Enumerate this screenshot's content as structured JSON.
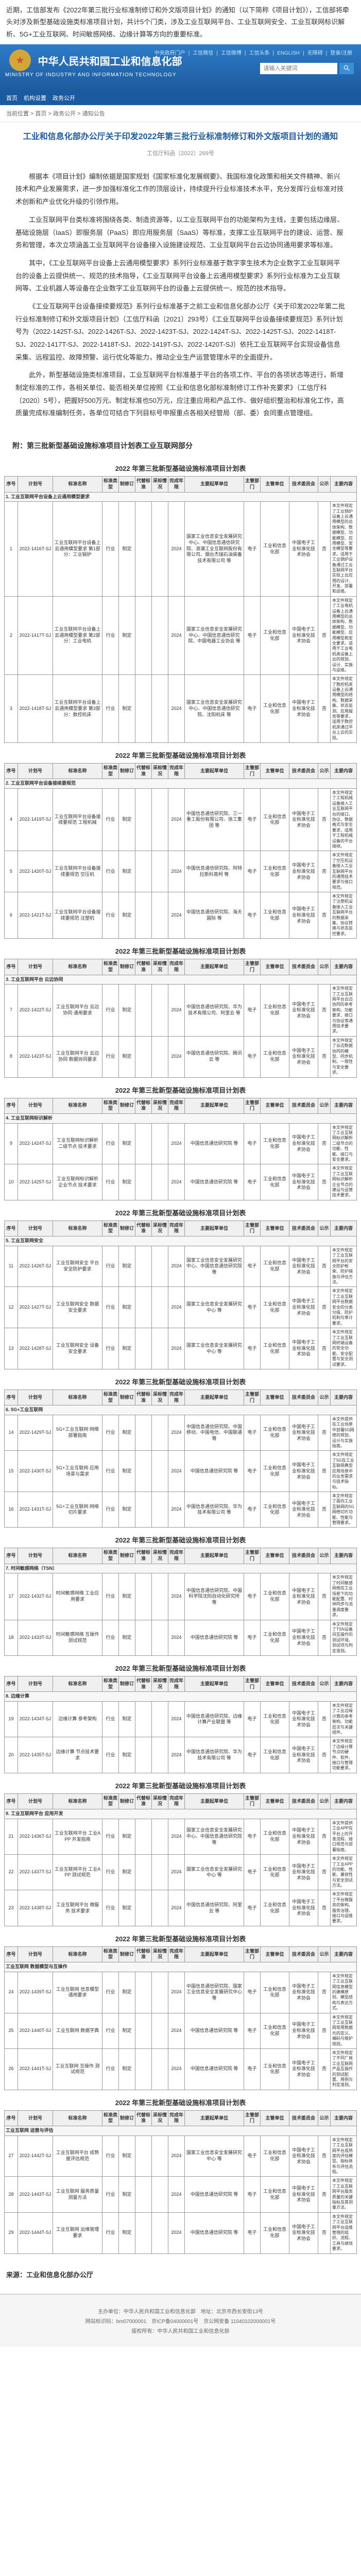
{
  "intro": "近期，工信部发布《2022年第三批行业标准制修订和外文版项目计划》的通知（以下简称《项目计划》），工信部将牵头对涉及新型基础设施类标准项目计划，共计5个门类，涉及工业互联网平台、工业互联网安全、工业互联网标识解析、5G+工业互联网、时间敏感网络、边缘计算等方向的重要标准。",
  "gov_title": "中华人民共和国工业和信息化部",
  "gov_subtitle": "MINISTRY OF INDUSTRY AND INFORMATION TECHNOLOGY",
  "top_links": [
    "中央政府门户",
    "工信微信",
    "工信微博",
    "工信头条",
    "ENGLISH",
    "无障碍",
    "登录/注册"
  ],
  "search_placeholder": "请输入关键词",
  "nav": [
    "首页",
    "机构设置",
    "政务公开"
  ],
  "breadcrumb": "当前位置 > 首页 > 政务公开 > 通知公告",
  "notice_title": "工业和信息化部办公厅关于印发2022年第三批行业标准制修订和外文版项目计划的通知",
  "notice_meta": "工信厅科函〔2022〕269号",
  "paragraphs": [
    "根据本《项目计划》编制依据是国家规划《国家标准化发展纲要》、我国标准化政策和相关文件精神、新兴技术和产业发展需求，进一步加强标准化工作的顶层设计，持续提升行业标准技术水平，充分发挥行业标准对技术创新和产业优化升级的引领作用。",
    "工业互联网平台类标准将围绕各类、制造资源等，以工业互联网平台的功能架构为主线，主要包括边缘层、基础设施层（IaaS）即服务层（PaaS）即应用服务层（SaaS）等标准，支撑工业互联网平台的建设、运营、服务和管理，本次立项涵盖工业互联网平台设备接入设施建设规范、工业互联网平台云边协同通用要求等标准。",
    "其中，《工业互联网平台设备上云通用模型要求》系列行业标准基于数字孪生技术为企业数字工业互联网平台的设备上云提供统一、规范的技术指导，《工业互联网平台设备上云通用模型要求》系列行业标准为工业互联网等、工业机器人等设备在企业数字工业互联网平台的设备上云提供统一、规范的技术指导。",
    "《工业互联网平台设备接续要规范》系列行业标准基于之前工业和信息化部办公厅《关于印发2022年第二批行业标准制修订和外文版项目计划》（工信厅科函〔2021〕293号）《工业互联网平台设备接续要规范》系列计划号为（2022-1425T-SJ、2022-1426T-SJ、2022-1423T-SJ、2022-1424T-SJ、2022-1425T-SJ、2022-1418T-SJ、2022-1417T-SJ、2022-1418T-SJ、2022-1419T-SJ、2022-1420T-SJ）依托工业互联网平台实现设备信息采集、远程监控、故障预警、运行优化等能力，推动企业生产运营管理水平的全面提升。",
    "此外，新型基础设施类标准项目，工业互联网平台标准基于平台的各项工作、平台的各项状态等进行，新增制定标准的工作，各相关单位、能否相关单位按照《工业和信息化部标准制修订工作补充要求》（工信厅科〔2020〕5号），把握好500万元、制定标准也50万元，应注重应用和产品工作、做好组织整治和标准化工作，高质量完成标准编制任务，各单位可结合下列目标号申报重点各相关经管局（部、委）会同重点管理组。"
  ],
  "attach_label": "附：第三批新型基础设施标准项目计划表工业互联网部分",
  "table_headers": [
    "序号",
    "计划号",
    "标准名称",
    "标准类型",
    "制修订",
    "代替标准",
    "采标情况",
    "完成年限",
    "主要起草单位",
    "主管部门",
    "主管单位",
    "技术委员会",
    "公示"
  ],
  "tables": [
    {
      "caption": "2022 年第三批新型基础设施标准项目计划表",
      "section": "1. 工业互联网平台设备上云通用模型要求",
      "rows": [
        {
          "no": "1",
          "plan": "2022-1416T-SJ",
          "name": "工业互联网平台设备上云通用模型要求 第1部分：工业锅炉",
          "type": "行业",
          "rev": "制定",
          "repl": "",
          "adopt": "",
          "year": "2024",
          "units": "国家工业信息安全发展研究中心、中国信息通信研究院、浪潮工业互联网股份有限公司、烟台杰瑞石油装备技术有限公司 等",
          "supe": "电子",
          "dept": "工业和信息化部",
          "tc": "中国电子工业标准化技术协会",
          "pub": "否",
          "content": "本文件规定了工业锅炉设备上云通用模型的总体架构、数据模型、功能模型、应用模型、安全模型等要求。适用于工业锅炉设备通过工业互联网平台实现上云应用的设计、开发、部署和运维。"
        },
        {
          "no": "2",
          "plan": "2022-1417T-SJ",
          "name": "工业互联网平台设备上云通用模型要求 第2部分：工业电机",
          "type": "行业",
          "rev": "制定",
          "repl": "",
          "adopt": "",
          "year": "2024",
          "units": "国家工业信息安全发展研究中心、中国信息通信研究院、中国电器工业协会 等",
          "supe": "电子",
          "dept": "工业和信息化部",
          "tc": "中国电子工业标准化技术协会",
          "pub": "否",
          "content": "本文件规定了工业电机设备上云通用模型的总体架构、数据模型、功能模型、应用模型和安全要求。适用于工业电机类设备上云的规划、设计、实施与运维。"
        },
        {
          "no": "3",
          "plan": "2022-1418T-SJ",
          "name": "工业互联网平台设备上云通用模型要求 第3部分：数控机床",
          "type": "行业",
          "rev": "制定",
          "repl": "",
          "adopt": "",
          "year": "2024",
          "units": "国家工业信息安全发展研究中心、中国信息通信研究院、沈阳机床 等",
          "supe": "电子",
          "dept": "工业和信息化部",
          "tc": "中国电子工业标准化技术协会",
          "pub": "否",
          "content": "本文件规定了数控机床设备上云通用模型的结构、数据采集、状态监测、应用服务等要求，适用于数控机床通过平台上云的实现。"
        }
      ]
    },
    {
      "caption": "2022 年第三批新型基础设施标准项目计划表",
      "section": "2. 工业互联网平台设备接续要规范",
      "rows": [
        {
          "no": "4",
          "plan": "2022-1419T-SJ",
          "name": "工业互联网平台设备接续要规范 工程机械",
          "type": "行业",
          "rev": "制定",
          "repl": "",
          "adopt": "",
          "year": "2024",
          "units": "中国信息通信研究院、三一重工股份有限公司、徐工集团 等",
          "supe": "电子",
          "dept": "工业和信息化部",
          "tc": "中国电子工业标准化技术协会",
          "pub": "否",
          "content": "本文件规定了工程机械设备接入工业互联网平台的接口、协议、数据格式与安全要求，适用于工程机械设备的平台接续。"
        },
        {
          "no": "5",
          "plan": "2022-1420T-SJ",
          "name": "工业互联网平台设备接续要规范 空压机",
          "type": "行业",
          "rev": "制定",
          "repl": "",
          "adopt": "",
          "year": "2024",
          "units": "中国信息通信研究院、阿特拉斯科普柯 等",
          "supe": "电子",
          "dept": "工业和信息化部",
          "tc": "中国电子工业标准化技术协会",
          "pub": "否",
          "content": "本文件规定了空压机设备接入工业互联网平台的通用技术要求与接口规范。"
        },
        {
          "no": "6",
          "plan": "2022-1421T-SJ",
          "name": "工业互联网平台设备接续要规范 注塑机",
          "type": "行业",
          "rev": "制定",
          "repl": "",
          "adopt": "",
          "year": "2024",
          "units": "中国信息通信研究院、海天国际 等",
          "supe": "电子",
          "dept": "工业和信息化部",
          "tc": "中国电子工业标准化技术协会",
          "pub": "否",
          "content": "本文件规定了注塑机设备接入工业互联网平台的数据采集、协议转换与状态监控要求。"
        }
      ]
    },
    {
      "caption": "2022 年第三批新型基础设施标准项目计划表",
      "section": "3. 工业互联网平台 云边协同",
      "rows": [
        {
          "no": "7",
          "plan": "2022-1422T-SJ",
          "name": "工业互联网平台 云边协同 通用要求",
          "type": "行业",
          "rev": "制定",
          "repl": "",
          "adopt": "",
          "year": "2024",
          "units": "中国信息通信研究院、华为技术有限公司、阿里云 等",
          "supe": "电子",
          "dept": "工业和信息化部",
          "tc": "中国电子工业标准化技术协会",
          "pub": "否",
          "content": "本文件规定了工业互联网平台云边协同的参考架构、功能要求、接口与协议等通用技术要求。"
        },
        {
          "no": "8",
          "plan": "2022-1423T-SJ",
          "name": "工业互联网平台 云边协同 数据协同要求",
          "type": "行业",
          "rev": "制定",
          "repl": "",
          "adopt": "",
          "year": "2024",
          "units": "中国信息通信研究院、腾讯云 等",
          "supe": "电子",
          "dept": "工业和信息化部",
          "tc": "中国电子工业标准化技术协会",
          "pub": "否",
          "content": "本文件规定了云边数据协同的模型、同步机制、一致性与安全要求。"
        }
      ]
    },
    {
      "caption": "2022 年第三批新型基础设施标准项目计划表",
      "section": "4. 工业互联网标识解析",
      "rows": [
        {
          "no": "9",
          "plan": "2022-1424T-SJ",
          "name": "工业互联网标识解析 二级节点 技术要求",
          "type": "行业",
          "rev": "制定",
          "repl": "",
          "adopt": "",
          "year": "2024",
          "units": "中国信息通信研究院 等",
          "supe": "电子",
          "dept": "工业和信息化部",
          "tc": "中国电子工业标准化技术协会",
          "pub": "否",
          "content": "本文件规定了工业互联网标识解析二级节点的功能、性能、接口与安全要求。"
        },
        {
          "no": "10",
          "plan": "2022-1425T-SJ",
          "name": "工业互联网标识解析 企业节点 技术要求",
          "type": "行业",
          "rev": "制定",
          "repl": "",
          "adopt": "",
          "year": "2024",
          "units": "中国信息通信研究院 等",
          "supe": "电子",
          "dept": "工业和信息化部",
          "tc": "中国电子工业标准化技术协会",
          "pub": "否",
          "content": "本文件规定了工业互联网标识解析企业节点的建设与运营技术要求。"
        }
      ]
    },
    {
      "caption": "2022 年第三批新型基础设施标准项目计划表",
      "section": "5. 工业互联网安全",
      "rows": [
        {
          "no": "11",
          "plan": "2022-1426T-SJ",
          "name": "工业互联网安全 平台安全防护要求",
          "type": "行业",
          "rev": "制定",
          "repl": "",
          "adopt": "",
          "year": "2024",
          "units": "国家工业信息安全发展研究中心、中国信息通信研究院 等",
          "supe": "电子",
          "dept": "工业和信息化部",
          "tc": "中国电子工业标准化技术协会",
          "pub": "否",
          "content": "本文件规定了工业互联网平台的安全防护框架、防护措施与评估方法。"
        },
        {
          "no": "12",
          "plan": "2022-1427T-SJ",
          "name": "工业互联网安全 数据安全要求",
          "type": "行业",
          "rev": "制定",
          "repl": "",
          "adopt": "",
          "year": "2024",
          "units": "国家工业信息安全发展研究中心 等",
          "supe": "电子",
          "dept": "工业和信息化部",
          "tc": "中国电子工业标准化技术协会",
          "pub": "否",
          "content": "本文件规定了工业互联网平台数据安全的分类分级、防护机制与审计要求。"
        },
        {
          "no": "13",
          "plan": "2022-1428T-SJ",
          "name": "工业互联网安全 设备安全要求",
          "type": "行业",
          "rev": "制定",
          "repl": "",
          "adopt": "",
          "year": "2024",
          "units": "国家工业信息安全发展研究中心 等",
          "supe": "电子",
          "dept": "工业和信息化部",
          "tc": "中国电子工业标准化技术协会",
          "pub": "否",
          "content": "本文件规定了工业互联网终端设备的安全功能、安全配置与安全测试要求。"
        }
      ]
    },
    {
      "caption": "2022 年第三批新型基础设施标准项目计划表",
      "section": "6. 5G+工业互联网",
      "rows": [
        {
          "no": "14",
          "plan": "2022-1429T-SJ",
          "name": "5G+工业互联网 网络部署指南",
          "type": "行业",
          "rev": "制定",
          "repl": "",
          "adopt": "",
          "year": "2024",
          "units": "中国信息通信研究院、中国移动、中国电信、中国联通 等",
          "supe": "电子",
          "dept": "工业和信息化部",
          "tc": "中国电子工业标准化技术协会",
          "pub": "否",
          "content": "本文件提供在工业场景中部署5G网络的规划、设计与实施指南。"
        },
        {
          "no": "15",
          "plan": "2022-1430T-SJ",
          "name": "5G+工业互联网 应用场景与需求",
          "type": "行业",
          "rev": "制定",
          "repl": "",
          "adopt": "",
          "year": "2024",
          "units": "中国信息通信研究院 等",
          "supe": "电子",
          "dept": "工业和信息化部",
          "tc": "中国电子工业标准化技术协会",
          "pub": "否",
          "content": "本文件规定了5G在工业互联网典型应用场景中的业务需求与技术指标。"
        },
        {
          "no": "16",
          "plan": "2022-1431T-SJ",
          "name": "5G+工业互联网 网络切片要求",
          "type": "行业",
          "rev": "制定",
          "repl": "",
          "adopt": "",
          "year": "2024",
          "units": "中国信息通信研究院、华为技术有限公司 等",
          "supe": "电子",
          "dept": "工业和信息化部",
          "tc": "中国电子工业标准化技术协会",
          "pub": "否",
          "content": "本文件规定了面向工业互联网的5G网络切片功能、性能与管理要求。"
        }
      ]
    },
    {
      "caption": "2022 年第三批新型基础设施标准项目计划表",
      "section": "7. 时间敏感网络（TSN）",
      "rows": [
        {
          "no": "17",
          "plan": "2022-1432T-SJ",
          "name": "时间敏感网络 工业应用要求",
          "type": "行业",
          "rev": "制定",
          "repl": "",
          "adopt": "",
          "year": "2024",
          "units": "中国信息通信研究院、中国科学院沈阳自动化研究所 等",
          "supe": "电子",
          "dept": "工业和信息化部",
          "tc": "中国电子工业标准化技术协会",
          "pub": "否",
          "content": "本文件规定了时间敏感网络在工业场景下的功能配置、时钟同步与流量调度要求。"
        },
        {
          "no": "18",
          "plan": "2022-1433T-SJ",
          "name": "时间敏感网络 互操作测试规范",
          "type": "行业",
          "rev": "制定",
          "repl": "",
          "adopt": "",
          "year": "2024",
          "units": "中国信息通信研究院 等",
          "supe": "电子",
          "dept": "工业和信息化部",
          "tc": "中国电子工业标准化技术协会",
          "pub": "否",
          "content": "本文件规定了TSN设备间互操作的测试环境、测试项与判定准则。"
        }
      ]
    },
    {
      "caption": "2022 年第三批新型基础设施标准项目计划表",
      "section": "8. 边缘计算",
      "rows": [
        {
          "no": "19",
          "plan": "2022-1434T-SJ",
          "name": "边缘计算 参考架构",
          "type": "行业",
          "rev": "制定",
          "repl": "",
          "adopt": "",
          "year": "2024",
          "units": "中国信息通信研究院、边缘计算产业联盟 等",
          "supe": "电子",
          "dept": "工业和信息化部",
          "tc": "中国电子工业标准化技术协会",
          "pub": "否",
          "content": "本文件规定了工业边缘计算的参考架构、功能层次与关键组件。"
        },
        {
          "no": "20",
          "plan": "2022-1435T-SJ",
          "name": "边缘计算 节点技术要求",
          "type": "行业",
          "rev": "制定",
          "repl": "",
          "adopt": "",
          "year": "2024",
          "units": "中国信息通信研究院、华为技术有限公司 等",
          "supe": "电子",
          "dept": "工业和信息化部",
          "tc": "中国电子工业标准化技术协会",
          "pub": "否",
          "content": "本文件规定了边缘计算节点的硬件、软件、接口与管理功能要求。"
        }
      ]
    },
    {
      "caption": "2022 年第三批新型基础设施标准项目计划表",
      "section": "9. 工业互联网平台 应用开发",
      "rows": [
        {
          "no": "21",
          "plan": "2022-1436T-SJ",
          "name": "工业互联网平台 工业APP 开发指南",
          "type": "行业",
          "rev": "制定",
          "repl": "",
          "adopt": "",
          "year": "2024",
          "units": "国家工业信息安全发展研究中心、中国信息通信研究院 等",
          "supe": "电子",
          "dept": "工业和信息化部",
          "tc": "中国电子工业标准化技术协会",
          "pub": "否",
          "content": "本文件提供工业APP在平台上的开发流程、接口规范与部署指南。"
        },
        {
          "no": "22",
          "plan": "2022-1437T-SJ",
          "name": "工业互联网平台 工业APP 测试规范",
          "type": "行业",
          "rev": "制定",
          "repl": "",
          "adopt": "",
          "year": "2024",
          "units": "国家工业信息安全发展研究中心 等",
          "supe": "电子",
          "dept": "工业和信息化部",
          "tc": "中国电子工业标准化技术协会",
          "pub": "否",
          "content": "本文件规定了工业APP的功能、性能、兼容性与安全测试方法。"
        },
        {
          "no": "23",
          "plan": "2022-1438T-SJ",
          "name": "工业互联网平台 微服务 技术要求",
          "type": "行业",
          "rev": "制定",
          "repl": "",
          "adopt": "",
          "year": "2024",
          "units": "中国信息通信研究院、阿里云 等",
          "supe": "电子",
          "dept": "工业和信息化部",
          "tc": "中国电子工业标准化技术协会",
          "pub": "否",
          "content": "本文件规定了平台微服务的架构、服务治理、接口与运维要求。"
        }
      ]
    },
    {
      "caption": "2022 年第三批新型基础设施标准项目计划表",
      "section": "工业互联网 数据模型与互操作",
      "rows": [
        {
          "no": "24",
          "plan": "2022-1439T-SJ",
          "name": "工业互联网 信息模型 通用要求",
          "type": "行业",
          "rev": "制定",
          "repl": "",
          "adopt": "",
          "year": "2024",
          "units": "中国信息通信研究院、国家工业信息安全发展研究中心 等",
          "supe": "电子",
          "dept": "工业和信息化部",
          "tc": "中国电子工业标准化技术协会",
          "pub": "否",
          "content": "本文件规定了工业互联网信息模型的建模原则、模型结构与表达方式。"
        },
        {
          "no": "25",
          "plan": "2022-1440T-SJ",
          "name": "工业互联网 数据字典",
          "type": "行业",
          "rev": "制定",
          "repl": "",
          "adopt": "",
          "year": "2024",
          "units": "中国信息通信研究院 等",
          "supe": "电子",
          "dept": "工业和信息化部",
          "tc": "中国电子工业标准化技术协会",
          "pub": "否",
          "content": "本文件规定了工业互联网常用数据元的定义、编码与维护规则。"
        },
        {
          "no": "26",
          "plan": "2022-1441T-SJ",
          "name": "工业互联网 互操作 测试规范",
          "type": "行业",
          "rev": "制定",
          "repl": "",
          "adopt": "",
          "year": "2024",
          "units": "中国信息通信研究院 等",
          "supe": "电子",
          "dept": "工业和信息化部",
          "tc": "中国电子工业标准化技术协会",
          "pub": "否",
          "content": "本文件规定了不同厂商工业互联网产品互操作的测试配置、用例与判定准则。"
        }
      ]
    },
    {
      "caption": "2022 年第三批新型基础设施标准项目计划表",
      "section": "工业互联网 运营与评估",
      "rows": [
        {
          "no": "27",
          "plan": "2022-1442T-SJ",
          "name": "工业互联网平台 成熟度评估规范",
          "type": "行业",
          "rev": "制定",
          "repl": "",
          "adopt": "",
          "year": "2024",
          "units": "国家工业信息安全发展研究中心 等",
          "supe": "电子",
          "dept": "工业和信息化部",
          "tc": "中国电子工业标准化技术协会",
          "pub": "否",
          "content": "本文件规定了工业互联网平台成熟度的评估模型、指标体系与评估流程。"
        },
        {
          "no": "28",
          "plan": "2022-1443T-SJ",
          "name": "工业互联网 服务质量 测量方法",
          "type": "行业",
          "rev": "制定",
          "repl": "",
          "adopt": "",
          "year": "2024",
          "units": "中国信息通信研究院 等",
          "supe": "电子",
          "dept": "工业和信息化部",
          "tc": "中国电子工业标准化技术协会",
          "pub": "否",
          "content": "本文件规定了工业互联网平台服务质量的关键指标及其测量方法。"
        },
        {
          "no": "29",
          "plan": "2022-1444T-SJ",
          "name": "工业互联网 运维管理 要求",
          "type": "行业",
          "rev": "制定",
          "repl": "",
          "adopt": "",
          "year": "2024",
          "units": "中国信息通信研究院 等",
          "supe": "电子",
          "dept": "工业和信息化部",
          "tc": "中国电子工业标准化技术协会",
          "pub": "否",
          "content": "本文件规定了工业互联网平台运维管理的组织、流程、工具与绩效要求。"
        }
      ]
    }
  ],
  "source": "来源：工业和信息化部办公厅",
  "footer": {
    "l1": "主办单位：中华人民共和国工业和信息化部　地址：北京市西长安街13号",
    "l2": "网站标识码：bm07000001　京ICP备04000001号　京公网安备 11040102000001号",
    "l3": "版权所有：中华人民共和国工业和信息化部"
  },
  "col_widths": [
    "26px",
    "68px",
    "96px",
    "32px",
    "32px",
    "32px",
    "32px",
    "32px",
    "115px",
    "32px",
    "56px",
    "56px",
    "24px"
  ]
}
